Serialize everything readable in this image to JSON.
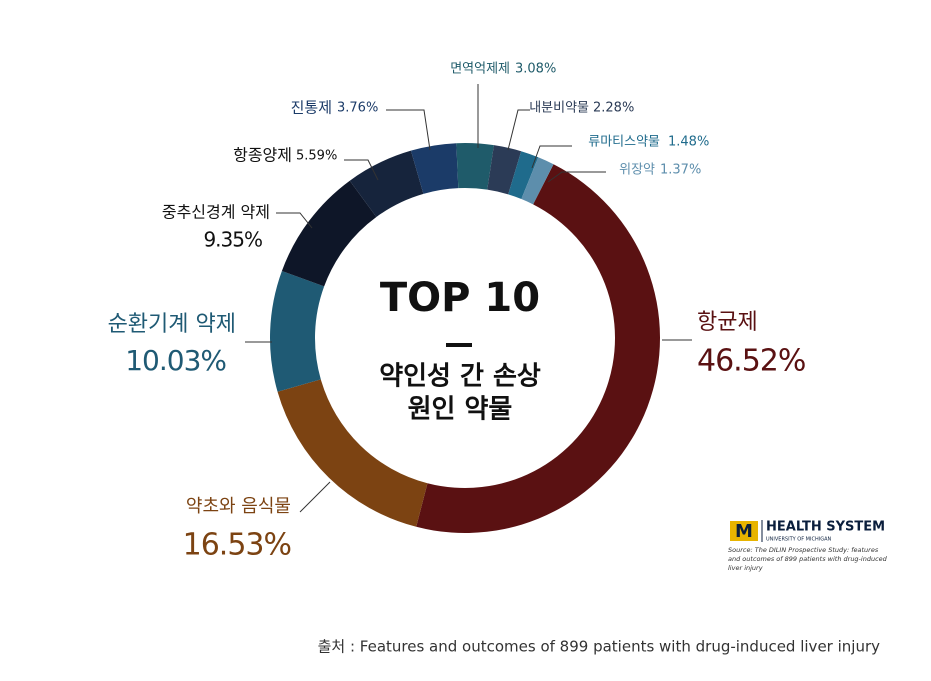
{
  "chart_data": {
    "type": "donut",
    "center_text": [
      "TOP 10",
      "약인성 간 손상",
      "원인 약물"
    ],
    "categories": [
      "항균제",
      "약초와 음식물",
      "순환기계 약제",
      "중추신경계 약제",
      "항종양제",
      "진통제",
      "면역억제제",
      "내분비약물",
      "류마티스약물",
      "위장약"
    ],
    "values": [
      46.52,
      16.53,
      10.03,
      9.35,
      5.59,
      3.76,
      3.08,
      2.28,
      1.48,
      1.37
    ],
    "value_labels": [
      "46.52%",
      "16.53%",
      "10.03%",
      "9.35%",
      "5.59%",
      "3.76%",
      "3.08%",
      "2.28%",
      "1.48%",
      "1.37%"
    ],
    "colors": [
      "#5a1112",
      "#7c4312",
      "#1f5a74",
      "#0e1628",
      "#16243c",
      "#1b3b68",
      "#1f5b6a",
      "#2b3b56",
      "#1f6b8c",
      "#5d8eac"
    ],
    "logo": {
      "mark": "M",
      "name": "HEALTH SYSTEM",
      "sub": "UNIVERSITY OF MICHIGAN",
      "source": "Source: The DILIN Prospective Study: features and outcomes of 899 patients with drug-induced liver injury"
    },
    "footer": "출처 : Features and outcomes of 899 patients with drug-induced liver injury"
  }
}
